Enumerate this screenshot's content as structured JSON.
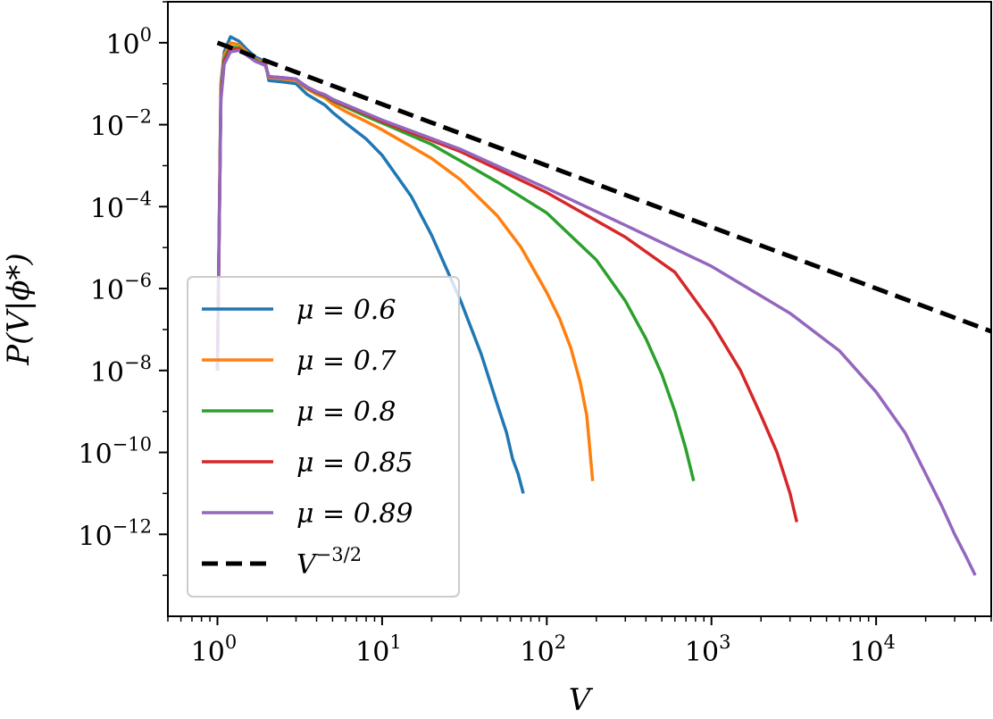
{
  "chart_data": {
    "type": "line",
    "xlabel": "V",
    "ylabel": "P(V|ϕ*)",
    "xscale": "log",
    "yscale": "log",
    "xlim": [
      0.5,
      50000
    ],
    "ylim": [
      1e-14,
      10
    ],
    "x_ticks": [
      {
        "base": "10",
        "exp": "0",
        "value": 1
      },
      {
        "base": "10",
        "exp": "1",
        "value": 10
      },
      {
        "base": "10",
        "exp": "2",
        "value": 100
      },
      {
        "base": "10",
        "exp": "3",
        "value": 1000
      },
      {
        "base": "10",
        "exp": "4",
        "value": 10000
      }
    ],
    "y_ticks": [
      {
        "base": "10",
        "exp": "0",
        "value": 1
      },
      {
        "base": "10",
        "exp": "−2",
        "value": 0.01
      },
      {
        "base": "10",
        "exp": "−4",
        "value": 0.0001
      },
      {
        "base": "10",
        "exp": "−6",
        "value": 1e-06
      },
      {
        "base": "10",
        "exp": "−8",
        "value": 1e-08
      },
      {
        "base": "10",
        "exp": "−10",
        "value": 1e-10
      },
      {
        "base": "10",
        "exp": "−12",
        "value": 1e-12
      }
    ],
    "grid": false,
    "legend_position": "lower-left",
    "series": [
      {
        "name": "μ = 0.6",
        "color": "#1f77b4",
        "x": [
          1,
          1.05,
          1.1,
          1.2,
          1.35,
          1.5,
          1.7,
          1.95,
          2.05,
          2.5,
          3.0,
          3.5,
          4.0,
          4.5,
          5,
          6,
          8,
          10,
          15,
          20,
          30,
          40,
          50,
          57,
          62,
          67,
          72
        ],
        "y": [
          1e-08,
          0.1,
          0.6,
          1.4,
          1.1,
          0.7,
          0.45,
          0.35,
          0.12,
          0.11,
          0.1,
          0.055,
          0.04,
          0.03,
          0.02,
          0.011,
          0.0045,
          0.0018,
          0.00018,
          2e-05,
          5e-07,
          2.5e-08,
          1.5e-09,
          3e-10,
          7e-11,
          3e-11,
          1e-11
        ]
      },
      {
        "name": "μ = 0.7",
        "color": "#ff7f0e",
        "x": [
          1,
          1.05,
          1.1,
          1.2,
          1.35,
          1.5,
          1.7,
          1.95,
          2.05,
          2.5,
          3.0,
          3.5,
          4.0,
          4.5,
          5,
          6,
          8,
          10,
          20,
          30,
          50,
          70,
          100,
          120,
          140,
          160,
          175,
          190
        ],
        "y": [
          1e-08,
          0.08,
          0.5,
          1.0,
          0.9,
          0.6,
          0.4,
          0.32,
          0.14,
          0.13,
          0.12,
          0.075,
          0.055,
          0.045,
          0.032,
          0.021,
          0.012,
          0.0075,
          0.0015,
          0.00045,
          6e-05,
          1e-05,
          8e-07,
          1.8e-07,
          3.5e-08,
          5e-09,
          8e-10,
          2e-11
        ]
      },
      {
        "name": "μ = 0.8",
        "color": "#2ca02c",
        "x": [
          1,
          1.05,
          1.1,
          1.2,
          1.35,
          1.5,
          1.7,
          1.95,
          2.05,
          2.5,
          3.0,
          3.5,
          4.0,
          4.5,
          5,
          6,
          8,
          10,
          20,
          50,
          100,
          200,
          300,
          400,
          500,
          600,
          700,
          780
        ],
        "y": [
          1e-08,
          0.06,
          0.4,
          0.8,
          0.75,
          0.55,
          0.38,
          0.3,
          0.15,
          0.14,
          0.13,
          0.08,
          0.06,
          0.05,
          0.038,
          0.027,
          0.016,
          0.011,
          0.0033,
          0.0004,
          7e-05,
          5e-06,
          5e-07,
          6e-08,
          8e-09,
          1e-09,
          1.2e-10,
          2e-11
        ]
      },
      {
        "name": "μ = 0.85",
        "color": "#d62728",
        "x": [
          1,
          1.05,
          1.1,
          1.2,
          1.35,
          1.5,
          1.7,
          1.95,
          2.05,
          2.5,
          3.0,
          3.5,
          4.0,
          4.5,
          5,
          6,
          8,
          10,
          30,
          100,
          300,
          600,
          1000,
          1500,
          2000,
          2500,
          3000,
          3300
        ],
        "y": [
          1e-08,
          0.05,
          0.35,
          0.7,
          0.7,
          0.52,
          0.36,
          0.29,
          0.15,
          0.14,
          0.13,
          0.082,
          0.062,
          0.052,
          0.04,
          0.029,
          0.018,
          0.012,
          0.0022,
          0.00022,
          1.8e-05,
          2.5e-06,
          1.5e-07,
          1e-08,
          8e-10,
          1e-10,
          1e-11,
          2e-12
        ]
      },
      {
        "name": "μ = 0.89",
        "color": "#9467bd",
        "x": [
          1,
          1.05,
          1.1,
          1.2,
          1.35,
          1.5,
          1.7,
          1.95,
          2.05,
          2.5,
          3.0,
          3.5,
          4.0,
          4.5,
          5,
          6,
          8,
          10,
          30,
          100,
          300,
          1000,
          3000,
          6000,
          10000,
          15000,
          20000,
          25000,
          30000,
          35000,
          40000
        ],
        "y": [
          1e-08,
          0.04,
          0.3,
          0.6,
          0.65,
          0.5,
          0.35,
          0.28,
          0.15,
          0.14,
          0.13,
          0.084,
          0.064,
          0.054,
          0.042,
          0.031,
          0.019,
          0.013,
          0.0025,
          0.00028,
          3.5e-05,
          3.5e-06,
          2.5e-07,
          3e-08,
          3e-09,
          3e-10,
          3e-11,
          5e-12,
          1e-12,
          3e-13,
          1e-13
        ]
      },
      {
        "name": "V^{−3/2}",
        "color": "#000000",
        "dashed": true,
        "x": [
          1,
          50000
        ],
        "y": [
          1,
          9e-08
        ]
      }
    ],
    "legend": [
      {
        "label": "μ = 0.6",
        "color": "#1f77b4"
      },
      {
        "label": "μ = 0.7",
        "color": "#ff7f0e"
      },
      {
        "label": "μ = 0.8",
        "color": "#2ca02c"
      },
      {
        "label": "μ = 0.85",
        "color": "#d62728"
      },
      {
        "label": "μ = 0.89",
        "color": "#9467bd"
      },
      {
        "label_base": "V",
        "label_exp": "−3/2",
        "color": "#000000",
        "dashed": true
      }
    ]
  }
}
